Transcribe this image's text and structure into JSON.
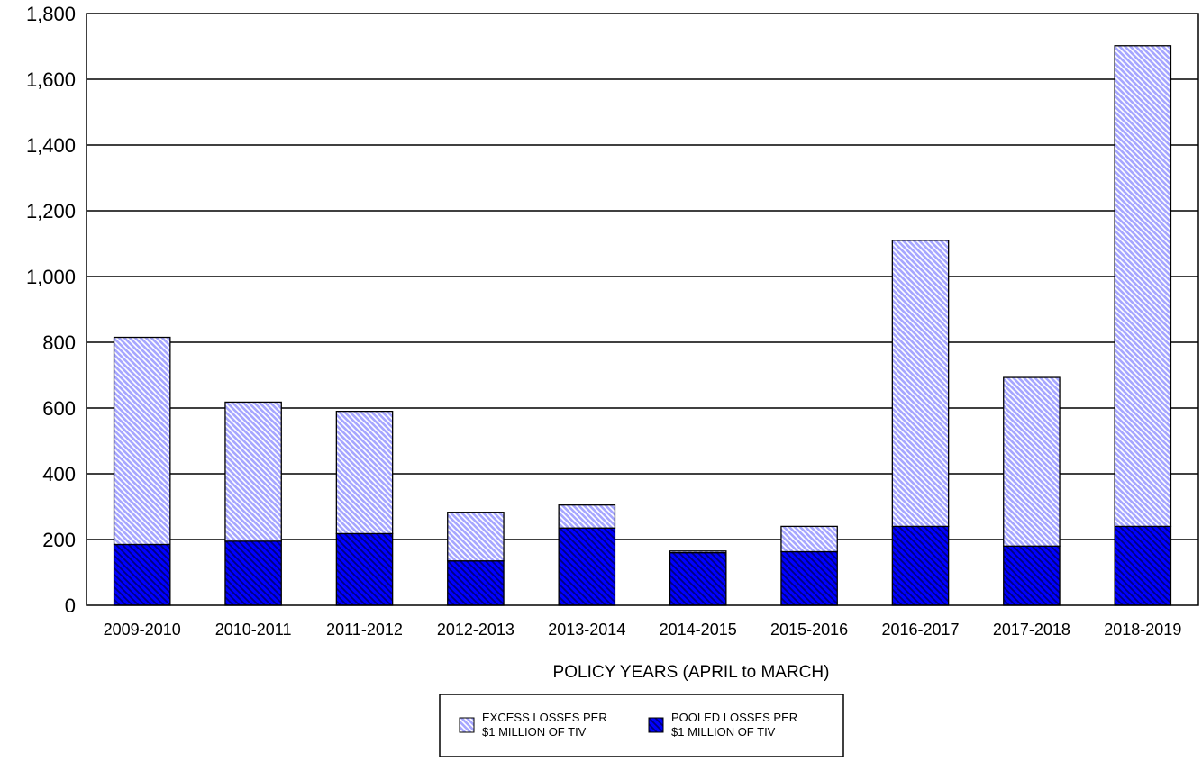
{
  "chart_data": {
    "type": "bar",
    "stacked": true,
    "title": "",
    "xlabel": "POLICY YEARS (APRIL to MARCH)",
    "ylabel": "",
    "ylim": [
      0,
      1800
    ],
    "yticks": [
      0,
      200,
      400,
      600,
      800,
      1000,
      1200,
      1400,
      1600,
      1800
    ],
    "ytick_labels": [
      "0",
      "200",
      "400",
      "600",
      "800",
      "1,000",
      "1,200",
      "1,400",
      "1,600",
      "1,800"
    ],
    "grid": "horizontal",
    "legend_position": "bottom-center",
    "categories": [
      "2009-2010",
      "2010-2011",
      "2011-2012",
      "2012-2013",
      "2013-2014",
      "2014-2015",
      "2015-2016",
      "2016-2017",
      "2017-2018",
      "2018-2019"
    ],
    "series": [
      {
        "name": "POOLED LOSSES PER $1 MILLION OF TIV",
        "legend_lines": [
          "POOLED LOSSES PER",
          "$1 MILLION OF TIV"
        ],
        "color": "#0000ff",
        "pattern": "dense-diagonal-hatch",
        "values": [
          185,
          195,
          218,
          135,
          235,
          160,
          163,
          240,
          180,
          240
        ]
      },
      {
        "name": "EXCESS LOSSES PER $1 MILLION OF TIV",
        "legend_lines": [
          "EXCESS LOSSES PER",
          "$1 MILLION OF TIV"
        ],
        "color": "#9999ff",
        "pattern": "light-diagonal-hatch",
        "values": [
          630,
          423,
          372,
          148,
          70,
          5,
          77,
          870,
          513,
          1462
        ]
      }
    ]
  }
}
